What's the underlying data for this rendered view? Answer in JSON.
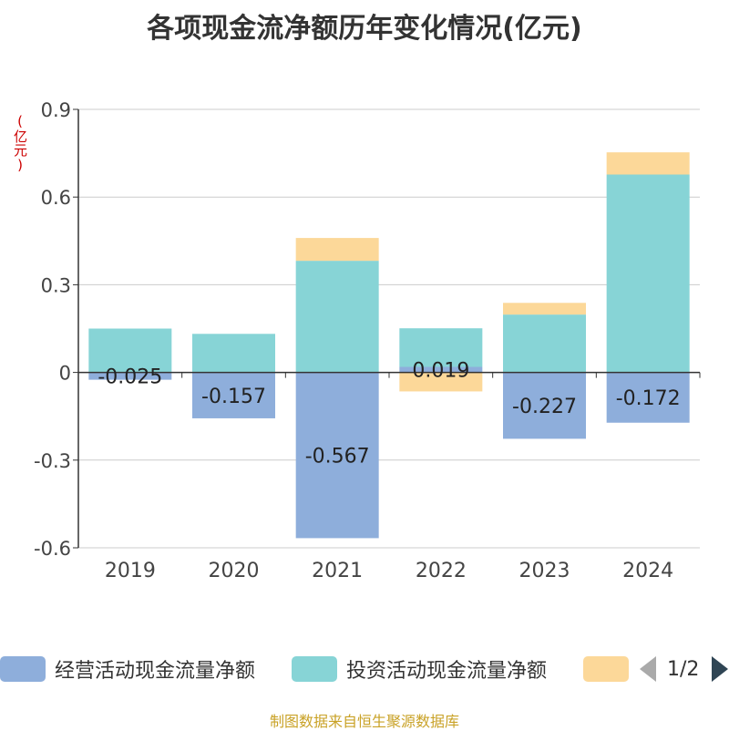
{
  "title": "各项现金流净额历年变化情况(亿元)",
  "unit_label": "(亿元)",
  "footer": "制图数据来自恒生聚源数据库",
  "legend": {
    "items": [
      {
        "label": "经营活动现金流量净额",
        "color": "#8eaedb"
      },
      {
        "label": "投资活动现金流量净额",
        "color": "#87d4d6"
      },
      {
        "label": "",
        "color": "#fcd899"
      }
    ],
    "page_indicator": "1/2"
  },
  "chart_data": {
    "type": "bar",
    "stacked": true,
    "title": "各项现金流净额历年变化情况(亿元)",
    "ylabel": "(亿元)",
    "categories": [
      "2019",
      "2020",
      "2021",
      "2022",
      "2023",
      "2024"
    ],
    "ylim": [
      -0.6,
      0.9
    ],
    "yticks": [
      -0.6,
      -0.3,
      0,
      0.3,
      0.6,
      0.9
    ],
    "ytick_labels": [
      "-0.6",
      "-0.3",
      "0",
      "0.3",
      "0.6",
      "0.9"
    ],
    "series": [
      {
        "name": "经营活动现金流量净额",
        "color": "#8eaedb",
        "values": [
          -0.025,
          -0.157,
          -0.567,
          0.019,
          -0.227,
          -0.172
        ],
        "labels": [
          "-0.025",
          "-0.157",
          "-0.567",
          "0.019",
          "-0.227",
          "-0.172"
        ]
      },
      {
        "name": "投资活动现金流量净额",
        "color": "#87d4d6",
        "values": [
          0.15,
          0.132,
          0.382,
          0.132,
          0.198,
          0.677
        ]
      },
      {
        "name": "",
        "color": "#fcd899",
        "values": [
          0,
          0,
          0.078,
          -0.065,
          0.04,
          0.076
        ]
      }
    ]
  }
}
